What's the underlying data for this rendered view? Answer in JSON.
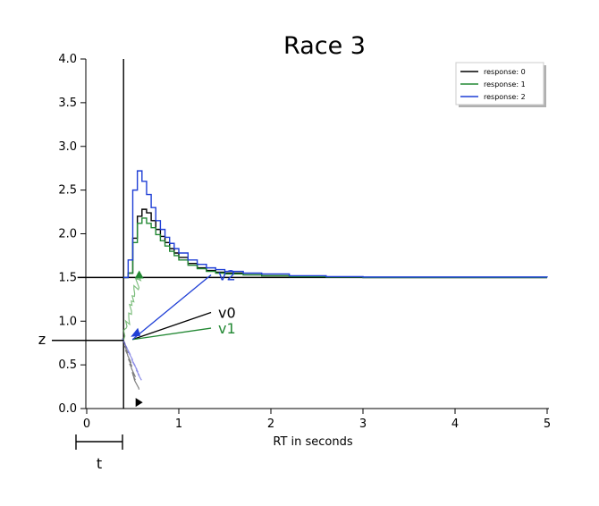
{
  "chart_data": {
    "type": "line",
    "title": "Race 3",
    "xlabel": "RT in seconds",
    "ylabel": "",
    "xlim": [
      -0.1,
      5
    ],
    "ylim": [
      0,
      4
    ],
    "x_ticks": [
      0,
      1,
      2,
      3,
      4,
      5
    ],
    "y_ticks": [
      "0.0",
      "0.5",
      "1.0",
      "1.5",
      "2.0",
      "2.5",
      "3.0",
      "3.5",
      "4.0"
    ],
    "grid": false,
    "legend_position": "top-right",
    "baseline": 1.5,
    "nondecision_time": 0.4,
    "starting_point": 0.78,
    "series": [
      {
        "name": "response: 0",
        "color": "#000000",
        "x": [
          0.4,
          0.45,
          0.5,
          0.55,
          0.6,
          0.65,
          0.7,
          0.75,
          0.8,
          0.85,
          0.9,
          0.95,
          1.0,
          1.1,
          1.2,
          1.3,
          1.4,
          1.5,
          1.7,
          1.9,
          2.2,
          2.6,
          3.0,
          5.0
        ],
        "y": [
          1.5,
          1.55,
          1.95,
          2.2,
          2.28,
          2.24,
          2.15,
          2.05,
          1.97,
          1.9,
          1.83,
          1.78,
          1.73,
          1.66,
          1.61,
          1.58,
          1.56,
          1.55,
          1.53,
          1.52,
          1.51,
          1.505,
          1.5,
          1.5
        ]
      },
      {
        "name": "response: 1",
        "color": "#228833",
        "x": [
          0.4,
          0.45,
          0.5,
          0.55,
          0.6,
          0.65,
          0.7,
          0.75,
          0.8,
          0.85,
          0.9,
          0.95,
          1.0,
          1.1,
          1.2,
          1.3,
          1.4,
          1.5,
          1.7,
          1.9,
          2.2,
          2.6,
          3.0,
          5.0
        ],
        "y": [
          1.5,
          1.55,
          1.9,
          2.12,
          2.18,
          2.12,
          2.07,
          1.99,
          1.92,
          1.86,
          1.8,
          1.75,
          1.7,
          1.64,
          1.6,
          1.57,
          1.55,
          1.54,
          1.53,
          1.52,
          1.51,
          1.505,
          1.5,
          1.5
        ]
      },
      {
        "name": "response: 2",
        "color": "#1f3fd6",
        "x": [
          0.4,
          0.45,
          0.5,
          0.55,
          0.6,
          0.65,
          0.7,
          0.75,
          0.8,
          0.85,
          0.9,
          0.95,
          1.0,
          1.1,
          1.2,
          1.3,
          1.4,
          1.5,
          1.7,
          1.9,
          2.2,
          2.6,
          3.0,
          5.0
        ],
        "y": [
          1.5,
          1.7,
          2.5,
          2.72,
          2.6,
          2.45,
          2.3,
          2.15,
          2.05,
          1.96,
          1.89,
          1.83,
          1.78,
          1.7,
          1.65,
          1.61,
          1.59,
          1.57,
          1.55,
          1.54,
          1.52,
          1.51,
          1.505,
          1.5
        ]
      }
    ],
    "drift_vectors": [
      {
        "label": "v0",
        "color": "#000000",
        "x_end": 1.35,
        "y_end": 1.1
      },
      {
        "label": "v1",
        "color": "#228833",
        "x_end": 1.35,
        "y_end": 0.92
      },
      {
        "label": "v2",
        "color": "#1f3fd6",
        "x_end": 1.35,
        "y_end": 1.53
      }
    ],
    "annotations": [
      {
        "label": "z"
      },
      {
        "label": "t"
      }
    ]
  }
}
